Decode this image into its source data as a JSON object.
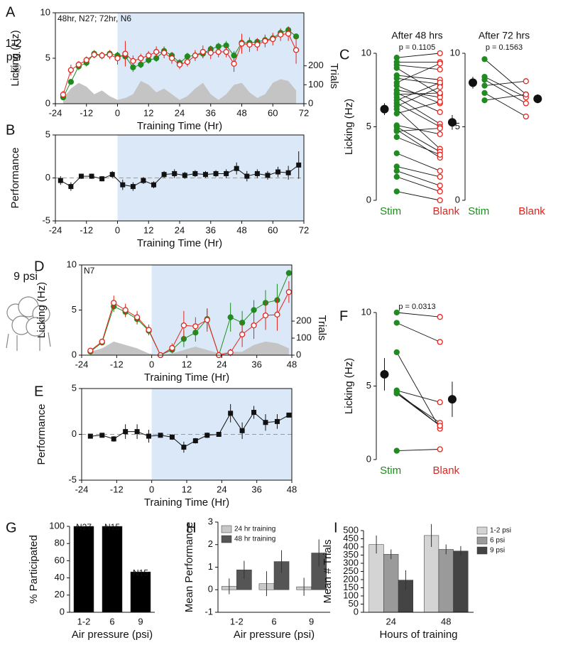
{
  "chart_data": [
    {
      "type": "line",
      "panel": "A",
      "side_label": "1-2 psi",
      "annotation": "48hr, N27; 72hr, N6",
      "xlabel": "Training Time (Hr)",
      "ylabel": "Licking (Hz)",
      "y2label": "Trials",
      "x": [
        -21,
        -18,
        -15,
        -12,
        -9,
        -6,
        -3,
        0,
        3,
        6,
        9,
        12,
        15,
        18,
        21,
        24,
        27,
        30,
        33,
        36,
        39,
        42,
        45,
        48,
        51,
        54,
        57,
        60,
        63,
        66,
        69
      ],
      "xlim": [
        -24,
        72
      ],
      "xticks": [
        -24,
        -12,
        0,
        12,
        24,
        36,
        48,
        60,
        72
      ],
      "ylim": [
        0,
        10
      ],
      "yticks": [
        0,
        5,
        10
      ],
      "y2lim": [
        0,
        480
      ],
      "y2ticks": [
        0,
        100,
        200
      ],
      "shaded_x": [
        0,
        72
      ],
      "series": [
        {
          "axis": "y2",
          "color": "#c4c4c4",
          "values": [
            30,
            80,
            110,
            90,
            50,
            70,
            40,
            20,
            30,
            50,
            120,
            100,
            60,
            80,
            50,
            20,
            40,
            80,
            110,
            50,
            20,
            50,
            100,
            110,
            60,
            30,
            50,
            110,
            130,
            120,
            70
          ]
        },
        {
          "color": "#1e8c1e",
          "marker": "filled",
          "values": [
            0.7,
            2.4,
            4.1,
            4.5,
            5.5,
            5.3,
            5.5,
            5.3,
            5.2,
            4.0,
            4.3,
            4.8,
            5.0,
            5.8,
            5.3,
            4.5,
            5.2,
            5.3,
            5.5,
            6.0,
            6.3,
            6.4,
            5.3,
            6.7,
            6.7,
            6.8,
            7.0,
            7.2,
            7.8,
            8.1,
            7.4
          ],
          "errors": [
            0.3,
            0.3,
            0.4,
            0.4,
            0.4,
            0.4,
            0.4,
            0.4,
            0.5,
            0.5,
            0.4,
            0.4,
            0.4,
            0.5,
            0.4,
            0.4,
            0.4,
            0.5,
            0.5,
            0.4,
            0.4,
            0.5,
            0.5,
            0.5,
            0.4,
            0.4,
            0.4,
            0.4,
            0.4,
            0.4,
            0.3
          ]
        },
        {
          "color": "#e5231b",
          "marker": "open",
          "values": [
            1.0,
            3.7,
            4.3,
            4.8,
            5.4,
            5.3,
            5.4,
            5.0,
            5.5,
            4.7,
            5.0,
            5.3,
            5.7,
            5.6,
            5.0,
            4.3,
            4.6,
            5.3,
            5.7,
            5.6,
            5.7,
            5.7,
            4.4,
            6.6,
            6.5,
            6.5,
            6.9,
            7.1,
            7.6,
            7.7,
            5.9
          ],
          "errors": [
            0.4,
            0.6,
            0.4,
            0.4,
            0.4,
            0.4,
            0.5,
            0.7,
            1.4,
            0.6,
            0.5,
            0.5,
            0.6,
            0.6,
            0.6,
            0.5,
            0.5,
            0.6,
            0.7,
            0.7,
            0.6,
            0.6,
            0.9,
            1.1,
            0.8,
            0.7,
            0.7,
            0.7,
            0.7,
            0.8,
            1.5
          ]
        }
      ]
    },
    {
      "type": "line",
      "panel": "B",
      "xlabel": "Training Time (Hr)",
      "ylabel": "Performance",
      "x": [
        -22,
        -18,
        -14,
        -10,
        -6,
        -2,
        2,
        6,
        10,
        14,
        18,
        22,
        26,
        30,
        34,
        38,
        42,
        46,
        50,
        54,
        58,
        62,
        66,
        70
      ],
      "xlim": [
        -24,
        72
      ],
      "xticks": [
        -24,
        -12,
        0,
        12,
        24,
        36,
        48,
        60,
        72
      ],
      "ylim": [
        -5,
        5
      ],
      "yticks": [
        -5,
        0,
        5
      ],
      "shaded_x": [
        0,
        72
      ],
      "hline": 0,
      "series": [
        {
          "color": "#111111",
          "marker": "square",
          "values": [
            -0.3,
            -1.0,
            0.2,
            0.2,
            -0.1,
            0.4,
            -0.8,
            -1.0,
            -0.3,
            -0.8,
            0.4,
            0.5,
            0.3,
            0.5,
            0.4,
            0.5,
            0.5,
            1.1,
            0.2,
            0.5,
            0.3,
            0.7,
            0.6,
            1.5
          ],
          "errors": [
            0.5,
            0.5,
            0.3,
            0.3,
            0.3,
            0.4,
            0.6,
            0.5,
            0.4,
            0.4,
            0.4,
            0.5,
            0.4,
            0.4,
            0.4,
            0.4,
            0.5,
            0.7,
            0.6,
            0.5,
            0.5,
            0.6,
            0.8,
            1.6
          ]
        }
      ]
    },
    {
      "type": "paired",
      "panel": "C",
      "title": "After 48 hrs",
      "annotation": "p = 0.1105",
      "ylabel": "Licking (Hz)",
      "ylim": [
        0,
        10
      ],
      "yticks": [
        0,
        5,
        10
      ],
      "series": [
        {
          "name": "Stim",
          "color": "#1e8c1e",
          "mean": 6.2,
          "error": 0.4,
          "values": [
            9.7,
            9.4,
            9.2,
            9.0,
            8.5,
            8.3,
            8.0,
            7.8,
            7.5,
            7.3,
            7.2,
            7.0,
            6.8,
            6.6,
            6.4,
            6.2,
            5.9,
            5.1,
            5.0,
            4.8,
            4.7,
            4.3,
            3.2,
            2.3,
            2.0,
            1.6,
            0.6
          ]
        },
        {
          "name": "Blank",
          "color": "#e5231b",
          "mean": 5.3,
          "error": 0.5,
          "values": [
            10.0,
            9.4,
            8.9,
            7.2,
            8.2,
            7.9,
            9.3,
            6.6,
            7.0,
            6.0,
            7.3,
            5.2,
            8.0,
            5.0,
            7.7,
            3.5,
            6.7,
            4.5,
            3.3,
            2.9,
            4.9,
            3.1,
            2.0,
            1.6,
            1.0,
            0.6,
            0.0
          ]
        }
      ]
    },
    {
      "type": "paired",
      "title": "After 72 hrs",
      "annotation": "p = 0.1563",
      "ylim": [
        0,
        10
      ],
      "yticks": [
        0,
        5,
        10
      ],
      "series": [
        {
          "name": "Stim",
          "color": "#1e8c1e",
          "mean": 8.0,
          "error": 0.4,
          "values": [
            9.6,
            8.4,
            8.2,
            7.8,
            7.3,
            6.8
          ]
        },
        {
          "name": "Blank",
          "color": "#e5231b",
          "mean": 6.9,
          "error": 0.3,
          "values": [
            7.2,
            7.0,
            6.6,
            8.1,
            5.7,
            7.2
          ]
        }
      ]
    },
    {
      "type": "line",
      "panel": "D",
      "side_label": "9 psi",
      "annotation": "N7",
      "xlabel": "Training Time (Hr)",
      "ylabel": "Licking (Hz)",
      "y2label": "Trials",
      "x": [
        -21,
        -17,
        -13,
        -9,
        -5,
        -1,
        3,
        7,
        11,
        15,
        19,
        23,
        27,
        31,
        35,
        39,
        43,
        47
      ],
      "xlim": [
        -24,
        48
      ],
      "xticks": [
        -24,
        -12,
        0,
        12,
        24,
        36,
        48
      ],
      "ylim": [
        0,
        10
      ],
      "yticks": [
        0,
        5,
        10
      ],
      "y2lim": [
        0,
        530
      ],
      "y2ticks": [
        0,
        100,
        200
      ],
      "shaded_x": [
        0,
        48
      ],
      "series": [
        {
          "axis": "y2",
          "color": "#c4c4c4",
          "values": [
            20,
            40,
            80,
            60,
            40,
            10,
            0,
            10,
            30,
            50,
            30,
            10,
            20,
            20,
            60,
            80,
            70,
            40
          ]
        },
        {
          "color": "#1e8c1e",
          "marker": "filled",
          "values": [
            0.4,
            1.4,
            5.4,
            4.8,
            4.0,
            2.7,
            0,
            0.6,
            1.8,
            2.5,
            4.0,
            0,
            4.2,
            3.6,
            5.0,
            5.8,
            6.1,
            9.1
          ],
          "errors": [
            0.2,
            0.2,
            0.6,
            0.6,
            0.6,
            0.5,
            0,
            0.4,
            0.9,
            1.0,
            1.1,
            0,
            1.6,
            1.3,
            1.1,
            1.4,
            1.8,
            0
          ]
        },
        {
          "color": "#e5231b",
          "marker": "open",
          "values": [
            0.5,
            1.5,
            5.8,
            5.0,
            4.2,
            2.8,
            0,
            0.8,
            3.3,
            3.2,
            3.9,
            0,
            0.3,
            2.3,
            3.3,
            4.4,
            4.5,
            7.0
          ],
          "errors": [
            0.2,
            0.2,
            0.8,
            0.7,
            0.7,
            0.6,
            0,
            0.5,
            1.6,
            1.0,
            1.3,
            0,
            0.4,
            1.4,
            1.5,
            1.6,
            1.8,
            1.2
          ]
        }
      ]
    },
    {
      "type": "line",
      "panel": "E",
      "xlabel": "Training Time (Hr)",
      "ylabel": "Performance",
      "x": [
        -21,
        -17,
        -13,
        -9,
        -5,
        -1,
        3,
        7,
        11,
        15,
        19,
        23,
        27,
        31,
        35,
        39,
        43,
        47
      ],
      "xlim": [
        -24,
        48
      ],
      "xticks": [
        -24,
        -12,
        0,
        12,
        24,
        36,
        48
      ],
      "ylim": [
        -5,
        5
      ],
      "yticks": [
        -5,
        0,
        5
      ],
      "shaded_x": [
        0,
        48
      ],
      "hline": 0,
      "series": [
        {
          "color": "#111111",
          "marker": "square",
          "values": [
            -0.2,
            -0.1,
            -0.5,
            0.3,
            0.3,
            -0.2,
            -0.1,
            -0.3,
            -1.4,
            -0.7,
            -0.1,
            0,
            2.3,
            0.4,
            2.4,
            1.3,
            1.4,
            2.1
          ],
          "errors": [
            0.2,
            0.2,
            0.3,
            0.8,
            0.8,
            0.7,
            0.2,
            0.3,
            0.6,
            0.3,
            0.3,
            0.1,
            1.0,
            0.9,
            0.7,
            0.9,
            0.8,
            0.2
          ]
        }
      ]
    },
    {
      "type": "paired",
      "panel": "F",
      "annotation": "p = 0.0313",
      "ylabel": "Licking (Hz)",
      "ylim": [
        0,
        10
      ],
      "yticks": [
        0,
        5,
        10
      ],
      "series": [
        {
          "name": "Stim",
          "color": "#1e8c1e",
          "mean": 5.8,
          "error": 1.1,
          "values": [
            10.0,
            9.3,
            7.3,
            4.7,
            4.6,
            4.5,
            4.5,
            0.6
          ]
        },
        {
          "name": "Blank",
          "color": "#e5231b",
          "mean": 4.1,
          "error": 1.2,
          "values": [
            9.7,
            8.0,
            2.1,
            3.9,
            2.3,
            2.5,
            2.3,
            0.7
          ]
        }
      ]
    },
    {
      "type": "bar",
      "panel": "G",
      "xlabel": "Air pressure (psi)",
      "ylabel": "% Participated",
      "categories": [
        "1-2",
        "6",
        "9"
      ],
      "values": [
        100,
        100,
        47
      ],
      "bar_labels": [
        "N27",
        "N15",
        "N15"
      ],
      "color": "#000000",
      "ylim": [
        0,
        100
      ],
      "yticks": [
        0,
        20,
        40,
        60,
        80,
        100
      ]
    },
    {
      "type": "bar",
      "panel": "H",
      "xlabel": "Air pressure (psi)",
      "ylabel": "Mean Performance",
      "categories": [
        "1-2",
        "6",
        "9"
      ],
      "ylim": [
        -1,
        3
      ],
      "yticks": [
        -1,
        0,
        1,
        2,
        3
      ],
      "legend": "upper left",
      "series": [
        {
          "name": "24 hr training",
          "color": "#c8c8c8",
          "values": [
            0.15,
            0.27,
            0.13
          ],
          "errors": [
            0.35,
            0.55,
            0.4
          ]
        },
        {
          "name": "48 hr training",
          "color": "#555555",
          "values": [
            0.88,
            1.25,
            1.63
          ],
          "errors": [
            0.4,
            0.5,
            0.6
          ]
        }
      ]
    },
    {
      "type": "bar",
      "panel": "I",
      "xlabel": "Hours of training",
      "ylabel": "Mean # Trials",
      "categories": [
        "24",
        "48"
      ],
      "ylim": [
        0,
        500
      ],
      "yticks": [
        0,
        50,
        100,
        150,
        200,
        250,
        300,
        350,
        400,
        450,
        500
      ],
      "legend": "right",
      "series": [
        {
          "name": "1-2 psi",
          "color": "#d4d4d4",
          "values": [
            415,
            470
          ],
          "errors": [
            55,
            70
          ]
        },
        {
          "name": "6 psi",
          "color": "#9a9a9a",
          "values": [
            355,
            385
          ],
          "errors": [
            30,
            30
          ]
        },
        {
          "name": "9 psi",
          "color": "#444444",
          "values": [
            197,
            375
          ],
          "errors": [
            60,
            30
          ]
        }
      ]
    }
  ]
}
